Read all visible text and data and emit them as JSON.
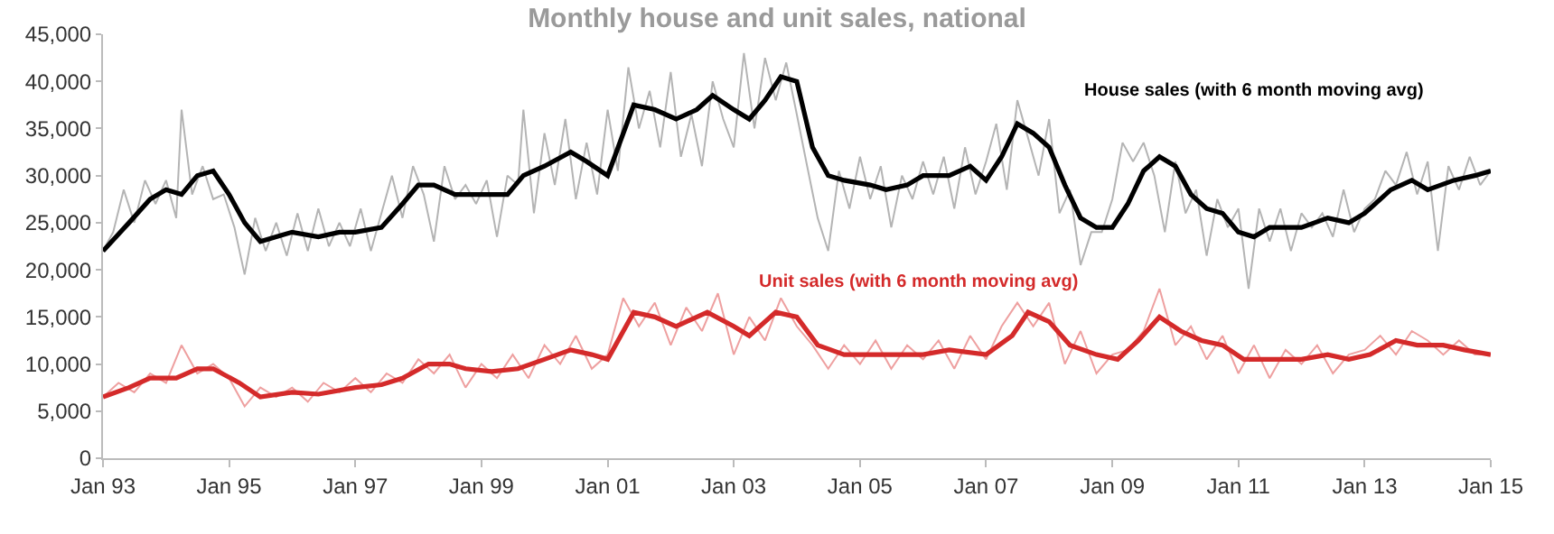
{
  "chart_data": {
    "type": "line",
    "title": "Monthly house and unit sales, national",
    "xlim": [
      "1993-01",
      "2015-01"
    ],
    "xticks": [
      {
        "value": "1993-01",
        "label": "Jan 93"
      },
      {
        "value": "1995-01",
        "label": "Jan 95"
      },
      {
        "value": "1997-01",
        "label": "Jan 97"
      },
      {
        "value": "1999-01",
        "label": "Jan 99"
      },
      {
        "value": "2001-01",
        "label": "Jan 01"
      },
      {
        "value": "2003-01",
        "label": "Jan 03"
      },
      {
        "value": "2005-01",
        "label": "Jan 05"
      },
      {
        "value": "2007-01",
        "label": "Jan 07"
      },
      {
        "value": "2009-01",
        "label": "Jan 09"
      },
      {
        "value": "2011-01",
        "label": "Jan 11"
      },
      {
        "value": "2013-01",
        "label": "Jan 13"
      },
      {
        "value": "2015-01",
        "label": "Jan 15"
      }
    ],
    "ylim": [
      0,
      45000
    ],
    "yticks": [
      0,
      {
        "value": 5000,
        "label": "5,000"
      },
      {
        "value": 10000,
        "label": "10,000"
      },
      {
        "value": 15000,
        "label": "15,000"
      },
      {
        "value": 20000,
        "label": "20,000"
      },
      {
        "value": 25000,
        "label": "25,000"
      },
      {
        "value": 30000,
        "label": "30,000"
      },
      {
        "value": 35000,
        "label": "35,000"
      },
      {
        "value": 40000,
        "label": "40,000"
      },
      {
        "value": 45000,
        "label": "45,000"
      }
    ],
    "series": [
      {
        "color": "#b4b4b4",
        "x": [
          "1993-01",
          "1993-03",
          "1993-05",
          "1993-07",
          "1993-09",
          "1993-11",
          "1994-01",
          "1994-03",
          "1994-04",
          "1994-06",
          "1994-08",
          "1994-10",
          "1994-12",
          "1995-02",
          "1995-04",
          "1995-06",
          "1995-08",
          "1995-10",
          "1995-12",
          "1996-02",
          "1996-04",
          "1996-06",
          "1996-08",
          "1996-10",
          "1996-12",
          "1997-02",
          "1997-04",
          "1997-06",
          "1997-08",
          "1997-10",
          "1997-12",
          "1998-02",
          "1998-04",
          "1998-06",
          "1998-08",
          "1998-10",
          "1998-12",
          "1999-02",
          "1999-04",
          "1999-06",
          "1999-08",
          "1999-09",
          "1999-11",
          "2000-01",
          "2000-03",
          "2000-05",
          "2000-07",
          "2000-09",
          "2000-11",
          "2001-01",
          "2001-03",
          "2001-05",
          "2001-07",
          "2001-09",
          "2001-11",
          "2002-01",
          "2002-03",
          "2002-05",
          "2002-07",
          "2002-09",
          "2002-11",
          "2003-01",
          "2003-03",
          "2003-05",
          "2003-07",
          "2003-09",
          "2003-11",
          "2004-01",
          "2004-03",
          "2004-05",
          "2004-07",
          "2004-09",
          "2004-11",
          "2005-01",
          "2005-03",
          "2005-05",
          "2005-07",
          "2005-09",
          "2005-11",
          "2006-01",
          "2006-03",
          "2006-05",
          "2006-07",
          "2006-09",
          "2006-11",
          "2007-01",
          "2007-03",
          "2007-05",
          "2007-07",
          "2007-09",
          "2007-11",
          "2008-01",
          "2008-03",
          "2008-05",
          "2008-07",
          "2008-09",
          "2008-11",
          "2009-01",
          "2009-03",
          "2009-05",
          "2009-07",
          "2009-09",
          "2009-11",
          "2010-01",
          "2010-03",
          "2010-05",
          "2010-07",
          "2010-09",
          "2010-11",
          "2011-01",
          "2011-03",
          "2011-05",
          "2011-07",
          "2011-09",
          "2011-11",
          "2012-01",
          "2012-03",
          "2012-05",
          "2012-07",
          "2012-09",
          "2012-11",
          "2013-01",
          "2013-03",
          "2013-05",
          "2013-07",
          "2013-09",
          "2013-11",
          "2014-01",
          "2014-03",
          "2014-05",
          "2014-07",
          "2014-09",
          "2014-11",
          "2015-01"
        ],
        "values": [
          22000,
          24000,
          28500,
          25000,
          29500,
          27000,
          29500,
          25500,
          37000,
          28000,
          31000,
          27500,
          28000,
          24500,
          19500,
          25500,
          22000,
          25000,
          21500,
          26000,
          22000,
          26500,
          22500,
          25000,
          22500,
          26500,
          22000,
          26000,
          30000,
          25500,
          31000,
          28000,
          23000,
          31000,
          27500,
          29000,
          27000,
          29500,
          23500,
          30000,
          29000,
          37000,
          26000,
          34500,
          29000,
          36000,
          27500,
          33500,
          28000,
          37000,
          30500,
          41500,
          35000,
          39000,
          33000,
          41000,
          32000,
          36500,
          31000,
          40000,
          36000,
          33000,
          43000,
          35000,
          42500,
          38000,
          42000,
          36500,
          31000,
          25500,
          22000,
          30500,
          26500,
          32000,
          27500,
          31000,
          24500,
          30000,
          27500,
          31500,
          28000,
          32000,
          26500,
          33000,
          28000,
          31500,
          35500,
          28500,
          38000,
          34000,
          30000,
          36000,
          26000,
          28500,
          20500,
          24000,
          24000,
          27500,
          33500,
          31500,
          33500,
          30000,
          24000,
          31500,
          26000,
          28500,
          21500,
          27500,
          24500,
          26500,
          18000,
          26500,
          23000,
          26500,
          22000,
          26000,
          24500,
          26000,
          23500,
          28500,
          24000,
          26500,
          27500,
          30500,
          29000,
          32500,
          28000,
          31500,
          22000,
          31000,
          28500,
          32000,
          29000,
          30500
        ]
      },
      {
        "color": "#000000",
        "name": "House sales (with 6 month moving avg)",
        "x": [
          "1993-01",
          "1993-06",
          "1993-10",
          "1994-01",
          "1994-04",
          "1994-07",
          "1994-10",
          "1995-01",
          "1995-04",
          "1995-07",
          "1995-10",
          "1996-01",
          "1996-06",
          "1996-10",
          "1997-01",
          "1997-06",
          "1997-10",
          "1998-01",
          "1998-04",
          "1998-08",
          "1999-01",
          "1999-06",
          "1999-09",
          "2000-01",
          "2000-06",
          "2000-09",
          "2001-01",
          "2001-06",
          "2001-10",
          "2002-02",
          "2002-06",
          "2002-09",
          "2003-01",
          "2003-04",
          "2003-07",
          "2003-10",
          "2004-01",
          "2004-04",
          "2004-07",
          "2004-10",
          "2005-03",
          "2005-06",
          "2005-10",
          "2006-01",
          "2006-06",
          "2006-10",
          "2007-01",
          "2007-04",
          "2007-07",
          "2007-10",
          "2008-01",
          "2008-04",
          "2008-07",
          "2008-10",
          "2009-01",
          "2009-04",
          "2009-07",
          "2009-10",
          "2010-01",
          "2010-04",
          "2010-07",
          "2010-10",
          "2011-01",
          "2011-04",
          "2011-07",
          "2011-10",
          "2012-01",
          "2012-06",
          "2012-10",
          "2013-01",
          "2013-06",
          "2013-10",
          "2014-01",
          "2014-06",
          "2014-10",
          "2015-01"
        ],
        "values": [
          22000,
          25000,
          27500,
          28500,
          28000,
          30000,
          30500,
          28000,
          25000,
          23000,
          23500,
          24000,
          23500,
          24000,
          24000,
          24500,
          27000,
          29000,
          29000,
          28000,
          28000,
          28000,
          30000,
          31000,
          32500,
          31500,
          30000,
          37500,
          37000,
          36000,
          37000,
          38500,
          37000,
          36000,
          38000,
          40500,
          40000,
          33000,
          30000,
          29500,
          29000,
          28500,
          29000,
          30000,
          30000,
          31000,
          29500,
          32000,
          35500,
          34500,
          33000,
          29000,
          25500,
          24500,
          24500,
          27000,
          30500,
          32000,
          31000,
          28000,
          26500,
          26000,
          24000,
          23500,
          24500,
          24500,
          24500,
          25500,
          25000,
          26000,
          28500,
          29500,
          28500,
          29500,
          30000,
          30500
        ]
      },
      {
        "color": "#eea0a0",
        "x": [
          "1993-01",
          "1993-04",
          "1993-07",
          "1993-10",
          "1994-01",
          "1994-04",
          "1994-07",
          "1994-10",
          "1995-01",
          "1995-04",
          "1995-07",
          "1995-10",
          "1996-01",
          "1996-04",
          "1996-07",
          "1996-10",
          "1997-01",
          "1997-04",
          "1997-07",
          "1997-10",
          "1998-01",
          "1998-04",
          "1998-07",
          "1998-10",
          "1999-01",
          "1999-04",
          "1999-07",
          "1999-10",
          "2000-01",
          "2000-04",
          "2000-07",
          "2000-10",
          "2001-01",
          "2001-04",
          "2001-07",
          "2001-10",
          "2002-01",
          "2002-04",
          "2002-07",
          "2002-10",
          "2003-01",
          "2003-04",
          "2003-07",
          "2003-10",
          "2004-01",
          "2004-04",
          "2004-07",
          "2004-10",
          "2005-01",
          "2005-04",
          "2005-07",
          "2005-10",
          "2006-01",
          "2006-04",
          "2006-07",
          "2006-10",
          "2007-01",
          "2007-04",
          "2007-07",
          "2007-10",
          "2008-01",
          "2008-04",
          "2008-07",
          "2008-10",
          "2009-01",
          "2009-04",
          "2009-07",
          "2009-10",
          "2010-01",
          "2010-04",
          "2010-07",
          "2010-10",
          "2011-01",
          "2011-04",
          "2011-07",
          "2011-10",
          "2012-01",
          "2012-04",
          "2012-07",
          "2012-10",
          "2013-01",
          "2013-04",
          "2013-07",
          "2013-10",
          "2014-01",
          "2014-04",
          "2014-07",
          "2014-10",
          "2015-01"
        ],
        "values": [
          6500,
          8000,
          7000,
          9000,
          8000,
          12000,
          9000,
          10000,
          8500,
          5500,
          7500,
          6500,
          7500,
          6000,
          8000,
          7000,
          8500,
          7000,
          9000,
          8000,
          10500,
          9000,
          11000,
          7500,
          10000,
          8500,
          11000,
          8500,
          12000,
          10000,
          13000,
          9500,
          11000,
          17000,
          14000,
          16500,
          12000,
          16000,
          13500,
          17500,
          11000,
          15000,
          12500,
          17000,
          14000,
          12000,
          9500,
          12000,
          10000,
          12500,
          9500,
          12000,
          10500,
          12500,
          9500,
          13000,
          10500,
          14000,
          16500,
          14000,
          16500,
          10000,
          13500,
          9000,
          11000,
          11500,
          13500,
          18000,
          12000,
          14000,
          10500,
          13000,
          9000,
          12000,
          8500,
          11500,
          10000,
          12000,
          9000,
          11000,
          11500,
          13000,
          11000,
          13500,
          12500,
          11000,
          12500,
          11000,
          11000
        ]
      },
      {
        "color": "#d42a2a",
        "name": "Unit sales (with 6 month moving avg)",
        "x": [
          "1993-01",
          "1993-06",
          "1993-10",
          "1994-03",
          "1994-07",
          "1994-10",
          "1995-03",
          "1995-07",
          "1996-01",
          "1996-06",
          "1997-01",
          "1997-06",
          "1997-10",
          "1998-03",
          "1998-07",
          "1998-10",
          "1999-03",
          "1999-08",
          "2000-01",
          "2000-06",
          "2000-10",
          "2001-01",
          "2001-06",
          "2001-10",
          "2002-02",
          "2002-08",
          "2003-01",
          "2003-04",
          "2003-09",
          "2004-01",
          "2004-05",
          "2004-10",
          "2005-06",
          "2006-01",
          "2006-06",
          "2007-01",
          "2007-06",
          "2007-09",
          "2008-01",
          "2008-05",
          "2008-10",
          "2009-02",
          "2009-06",
          "2009-10",
          "2010-02",
          "2010-06",
          "2010-10",
          "2011-02",
          "2011-06",
          "2012-01",
          "2012-06",
          "2012-10",
          "2013-02",
          "2013-07",
          "2013-11",
          "2014-04",
          "2014-08",
          "2015-01"
        ],
        "values": [
          6500,
          7500,
          8500,
          8500,
          9500,
          9500,
          8000,
          6500,
          7000,
          6800,
          7500,
          7800,
          8500,
          10000,
          10000,
          9500,
          9200,
          9500,
          10500,
          11500,
          11000,
          10500,
          15500,
          15000,
          14000,
          15500,
          14000,
          13000,
          15500,
          15000,
          12000,
          11000,
          11000,
          11000,
          11500,
          11000,
          13000,
          15500,
          14500,
          12000,
          11000,
          10500,
          12500,
          15000,
          13500,
          12500,
          12000,
          10500,
          10500,
          10500,
          11000,
          10500,
          11000,
          12500,
          12000,
          12000,
          11500,
          11000
        ]
      }
    ]
  }
}
